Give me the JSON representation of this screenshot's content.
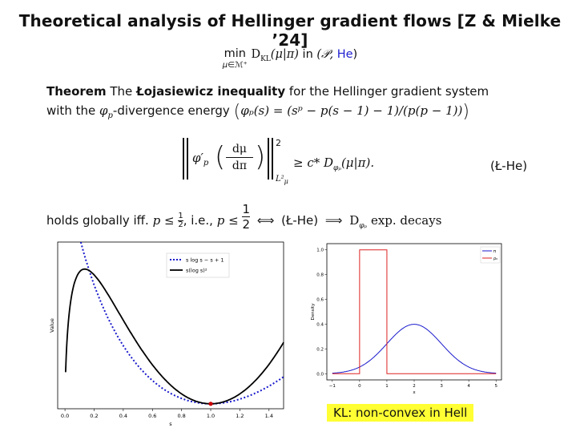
{
  "slide": {
    "title": "Theoretical analysis of Hellinger gradient flows [Z & Mielke ’24]",
    "min_word": "min",
    "min_sub": "μ∈ℳ⁺",
    "objective": "D",
    "objective_sub": "KL",
    "objective_arg": "(μ|π)",
    "in_word": "in",
    "space_open": "(𝒫, ",
    "space_he": "He",
    "space_close": ")",
    "thm_label": "Theorem",
    "thm_text1": "The",
    "thm_bold": "Łojasiewicz inequality",
    "thm_text2": "for the Hellinger gradient system",
    "thm_text3": "with the",
    "thm_phi": "φ",
    "thm_phi_sub": "p",
    "thm_text4": "-divergence energy",
    "thm_formula": "φₚ(s) = (sᵖ − p(s − 1) − 1)/(p(p − 1))",
    "ineq_phi": "φ′",
    "ineq_phi_sub": "p",
    "ineq_num": "dμ",
    "ineq_den": "dπ",
    "ineq_sup": "2",
    "ineq_norm_sub": "L²",
    "ineq_norm_subsub": "μ",
    "ineq_rhs": "≥ c* D",
    "ineq_rhs_sub": "φₚ",
    "ineq_rhs_arg": "(μ|π).",
    "ineq_tag": "(Ł-He)",
    "holds_text": "holds globally iff.",
    "holds_p1": "p ≤",
    "holds_half_small_num": "1",
    "holds_half_small_den": "2",
    "holds_ie": ", i.e.,",
    "holds_p2": "p ≤",
    "holds_half_num": "1",
    "holds_half_den": "2",
    "iff_symbol": "⟺",
    "holds_tag": "(Ł-He)",
    "implies_symbol": "⟹",
    "decay_D": "D",
    "decay_sub": "φₚ",
    "decay_text": "exp. decays",
    "kl_note": "KL: non-convex in Hell"
  },
  "chart_data": [
    {
      "type": "line",
      "title": "",
      "xlabel": "s",
      "ylabel": "Value",
      "xlim": [
        -0.05,
        1.5
      ],
      "ylim": [
        -0.02,
        0.65
      ],
      "x_ticks": [
        "0.0",
        "0.2",
        "0.4",
        "0.6",
        "0.8",
        "1.0",
        "1.2",
        "1.4"
      ],
      "legend_position": "top-right",
      "grid": false,
      "series": [
        {
          "name": "s log s − s + 1",
          "style": "dotted",
          "color": "#1a1acc",
          "function": "s*ln(s)-s+1"
        },
        {
          "name": "s(log s)²",
          "style": "solid",
          "color": "#000000",
          "function": "s*ln(s)^2"
        }
      ],
      "marker": {
        "x": 1.0,
        "y": 0.0,
        "color": "#cc0000"
      }
    },
    {
      "type": "line",
      "title": "",
      "xlabel": "x",
      "ylabel": "Density",
      "xlim": [
        -1.2,
        5.2
      ],
      "ylim": [
        -0.05,
        1.05
      ],
      "x_ticks": [
        "−1",
        "0",
        "1",
        "2",
        "3",
        "4",
        "5"
      ],
      "y_ticks": [
        "0.0",
        "0.2",
        "0.4",
        "0.6",
        "0.8",
        "1.0"
      ],
      "legend_position": "top-right",
      "grid": false,
      "series": [
        {
          "name": "π",
          "color": "#1a1acc",
          "function": "normal pdf mean 2, sd 1",
          "x_range": [
            -1,
            5
          ]
        },
        {
          "name": "ρ₀",
          "color": "#dd2222",
          "function": "uniform density on [0,1]",
          "x_range": [
            -1,
            5
          ]
        }
      ]
    }
  ]
}
